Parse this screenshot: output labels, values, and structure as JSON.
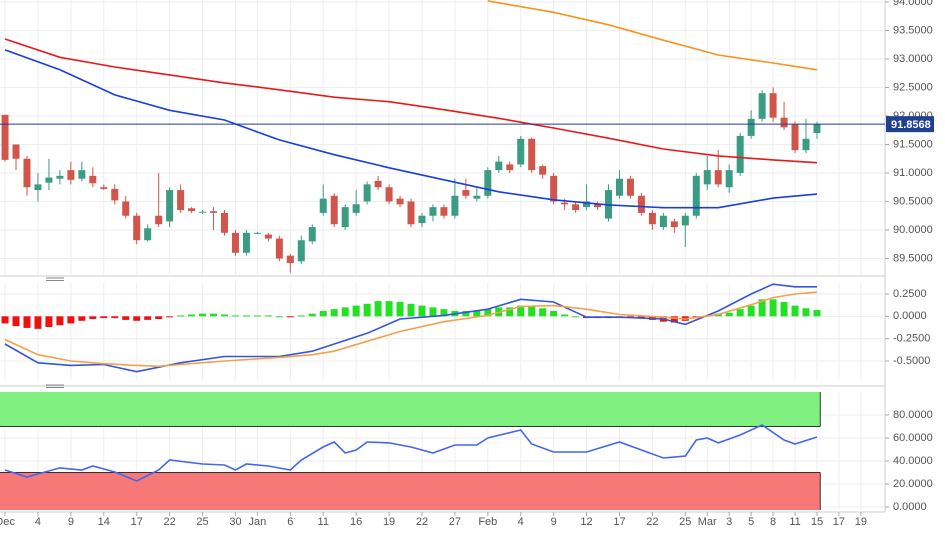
{
  "chart_data": [
    {
      "type": "candlestick",
      "up_color": "#3b9c84",
      "down_color": "#d0564c",
      "ylim": [
        89.21,
        94.035
      ],
      "yticks": [
        {
          "value": 94,
          "label": "94.0000"
        },
        {
          "value": 93.5,
          "label": "93.5000"
        },
        {
          "value": 93,
          "label": "93.0000"
        },
        {
          "value": 92.5,
          "label": "92.5000"
        },
        {
          "value": 92,
          "label": "92.0000"
        },
        {
          "value": 91.5,
          "label": "91.5000"
        },
        {
          "value": 91,
          "label": "91.0000"
        },
        {
          "value": 90.5,
          "label": "90.5000"
        },
        {
          "value": 90,
          "label": "90.0000"
        },
        {
          "value": 89.5,
          "label": "89.5000"
        }
      ],
      "grid": true,
      "candles": [
        [
          92.02,
          92.02,
          91.2,
          91.23
        ],
        [
          91.5,
          91.5,
          91.05,
          91.25
        ],
        [
          91.25,
          91.3,
          90.6,
          90.75
        ],
        [
          90.7,
          91.0,
          90.5,
          90.8
        ],
        [
          90.83,
          91.25,
          90.7,
          90.92
        ],
        [
          90.9,
          91.05,
          90.8,
          90.95
        ],
        [
          91.05,
          91.2,
          90.8,
          90.88
        ],
        [
          90.9,
          91.2,
          90.85,
          91.05
        ],
        [
          90.95,
          91.1,
          90.75,
          90.82
        ],
        [
          90.75,
          90.8,
          90.7,
          90.72
        ],
        [
          90.72,
          90.8,
          90.45,
          90.52
        ],
        [
          90.5,
          90.6,
          90.2,
          90.25
        ],
        [
          90.25,
          90.3,
          89.75,
          89.82
        ],
        [
          89.82,
          90.1,
          89.8,
          90.03
        ],
        [
          90.25,
          91.0,
          90.05,
          90.1
        ],
        [
          90.15,
          90.75,
          90.05,
          90.7
        ],
        [
          90.7,
          90.8,
          90.3,
          90.35
        ],
        [
          90.38,
          90.4,
          90.3,
          90.33
        ],
        [
          90.32,
          90.35,
          90.28,
          90.32
        ],
        [
          90.33,
          90.4,
          90.0,
          90.3
        ],
        [
          90.3,
          90.35,
          89.9,
          89.95
        ],
        [
          89.95,
          90.0,
          89.55,
          89.6
        ],
        [
          89.6,
          90.0,
          89.55,
          89.95
        ],
        [
          89.95,
          89.97,
          89.93,
          89.95
        ],
        [
          89.92,
          89.95,
          89.8,
          89.85
        ],
        [
          89.85,
          89.9,
          89.45,
          89.5
        ],
        [
          89.55,
          89.58,
          89.25,
          89.42
        ],
        [
          89.45,
          89.9,
          89.4,
          89.82
        ],
        [
          89.8,
          90.1,
          89.75,
          90.05
        ],
        [
          90.3,
          90.8,
          90.25,
          90.55
        ],
        [
          90.6,
          90.65,
          90.05,
          90.1
        ],
        [
          90.05,
          90.45,
          90.0,
          90.4
        ],
        [
          90.3,
          90.7,
          90.25,
          90.45
        ],
        [
          90.5,
          90.85,
          90.45,
          90.8
        ],
        [
          90.86,
          90.95,
          90.7,
          90.75
        ],
        [
          90.75,
          90.8,
          90.45,
          90.5
        ],
        [
          90.55,
          90.6,
          90.4,
          90.45
        ],
        [
          90.5,
          90.55,
          90.05,
          90.1
        ],
        [
          90.12,
          90.3,
          90.05,
          90.25
        ],
        [
          90.25,
          90.45,
          90.15,
          90.4
        ],
        [
          90.4,
          90.45,
          90.2,
          90.25
        ],
        [
          90.25,
          90.9,
          90.2,
          90.6
        ],
        [
          90.7,
          90.9,
          90.55,
          90.6
        ],
        [
          90.55,
          90.75,
          90.5,
          90.6
        ],
        [
          90.6,
          91.1,
          90.55,
          91.05
        ],
        [
          91.05,
          91.3,
          91.0,
          91.2
        ],
        [
          91.15,
          91.2,
          91.0,
          91.05
        ],
        [
          91.15,
          91.65,
          91.1,
          91.6
        ],
        [
          91.6,
          91.62,
          91.0,
          91.05
        ],
        [
          91.12,
          91.15,
          90.9,
          90.97
        ],
        [
          90.95,
          91.0,
          90.45,
          90.5
        ],
        [
          90.48,
          90.55,
          90.35,
          90.45
        ],
        [
          90.45,
          90.5,
          90.3,
          90.35
        ],
        [
          90.4,
          90.8,
          90.35,
          90.5
        ],
        [
          90.45,
          90.5,
          90.35,
          90.4
        ],
        [
          90.2,
          90.8,
          90.15,
          90.7
        ],
        [
          90.6,
          91.05,
          90.55,
          90.9
        ],
        [
          90.9,
          90.95,
          90.55,
          90.6
        ],
        [
          90.6,
          90.65,
          90.25,
          90.3
        ],
        [
          90.3,
          90.35,
          90.0,
          90.1
        ],
        [
          90.05,
          90.3,
          90.0,
          90.25
        ],
        [
          90.15,
          90.2,
          89.95,
          90.05
        ],
        [
          90.08,
          90.3,
          89.7,
          90.25
        ],
        [
          90.25,
          91.0,
          90.2,
          90.95
        ],
        [
          90.8,
          91.3,
          90.7,
          91.05
        ],
        [
          91.05,
          91.4,
          90.75,
          90.8
        ],
        [
          90.75,
          91.15,
          90.65,
          91.05
        ],
        [
          91.0,
          91.7,
          90.95,
          91.65
        ],
        [
          91.65,
          92.1,
          91.6,
          91.95
        ],
        [
          91.95,
          92.45,
          91.9,
          92.4
        ],
        [
          92.4,
          92.5,
          91.9,
          91.97
        ],
        [
          91.97,
          92.25,
          91.75,
          91.8
        ],
        [
          91.85,
          91.9,
          91.35,
          91.4
        ],
        [
          91.4,
          91.95,
          91.35,
          91.6
        ],
        [
          91.7,
          91.9,
          91.6,
          91.86
        ]
      ],
      "series": [
        {
          "color": "#f7931e",
          "x": [
            44,
            50,
            55,
            60,
            65,
            70,
            74
          ],
          "values": [
            94.02,
            93.82,
            93.6,
            93.33,
            93.07,
            92.93,
            92.81
          ]
        },
        {
          "color": "#e8191c",
          "x": [
            0,
            5,
            10,
            15,
            20,
            25,
            30,
            35,
            40,
            45,
            50,
            55,
            60,
            65,
            70,
            74
          ],
          "values": [
            93.35,
            93.03,
            92.86,
            92.72,
            92.58,
            92.46,
            92.33,
            92.25,
            92.11,
            91.96,
            91.79,
            91.61,
            91.42,
            91.3,
            91.23,
            91.18
          ]
        },
        {
          "color": "#1a3de0",
          "x": [
            0,
            5,
            10,
            15,
            20,
            25,
            30,
            35,
            40,
            45,
            50,
            55,
            60,
            65,
            70,
            74
          ],
          "values": [
            93.16,
            92.81,
            92.37,
            92.1,
            91.93,
            91.58,
            91.32,
            91.09,
            90.88,
            90.67,
            90.53,
            90.44,
            90.39,
            90.39,
            90.56,
            90.63
          ]
        }
      ],
      "last_price": 91.8568,
      "last_price_color": "#1f3f8f"
    },
    {
      "type": "macd",
      "positive_color": "#22e022",
      "negative_color": "#ee1111",
      "ylim": [
        -0.713,
        0.373
      ],
      "yticks": [
        {
          "value": 0.25,
          "label": "0.2500"
        },
        {
          "value": 0,
          "label": "0.0000"
        },
        {
          "value": -0.25,
          "label": "-0.2500"
        },
        {
          "value": -0.5,
          "label": "-0.5000"
        }
      ],
      "grid": true,
      "histogram": [
        -0.08,
        -0.11,
        -0.13,
        -0.14,
        -0.12,
        -0.1,
        -0.08,
        -0.05,
        -0.03,
        -0.02,
        -0.02,
        -0.04,
        -0.05,
        -0.04,
        -0.03,
        -0.01,
        0.01,
        0.02,
        0.03,
        0.03,
        0.02,
        0.01,
        0.01,
        0.01,
        0.01,
        0.0,
        -0.01,
        0.01,
        0.03,
        0.06,
        0.08,
        0.1,
        0.12,
        0.14,
        0.17,
        0.17,
        0.16,
        0.14,
        0.12,
        0.1,
        0.08,
        0.06,
        0.06,
        0.06,
        0.08,
        0.1,
        0.1,
        0.12,
        0.11,
        0.09,
        0.06,
        0.02,
        0.0,
        -0.02,
        -0.02,
        -0.02,
        -0.01,
        -0.01,
        -0.02,
        -0.04,
        -0.06,
        -0.07,
        -0.05,
        -0.02,
        0.01,
        0.03,
        0.04,
        0.08,
        0.12,
        0.19,
        0.19,
        0.16,
        0.12,
        0.09,
        0.07
      ],
      "series": [
        {
          "color": "#3355dd",
          "x": [
            0,
            3,
            6,
            9,
            12,
            14,
            16,
            20,
            25,
            28,
            30,
            33,
            36,
            40,
            44,
            47,
            50,
            53,
            56,
            60,
            62,
            65,
            68,
            70,
            72,
            74
          ],
          "values": [
            -0.31,
            -0.52,
            -0.55,
            -0.54,
            -0.62,
            -0.57,
            -0.52,
            -0.45,
            -0.45,
            -0.39,
            -0.31,
            -0.19,
            -0.03,
            0.01,
            0.08,
            0.19,
            0.16,
            -0.01,
            -0.01,
            -0.03,
            -0.09,
            0.06,
            0.25,
            0.36,
            0.33,
            0.33
          ]
        },
        {
          "color": "#f5a04a",
          "x": [
            0,
            3,
            6,
            9,
            12,
            14,
            16,
            20,
            25,
            28,
            30,
            33,
            36,
            40,
            44,
            47,
            50,
            53,
            56,
            60,
            62,
            65,
            68,
            70,
            72,
            74
          ],
          "values": [
            -0.26,
            -0.43,
            -0.5,
            -0.53,
            -0.55,
            -0.56,
            -0.54,
            -0.5,
            -0.46,
            -0.43,
            -0.39,
            -0.28,
            -0.17,
            -0.06,
            0.01,
            0.11,
            0.12,
            0.08,
            0.02,
            -0.01,
            -0.03,
            0.02,
            0.13,
            0.21,
            0.25,
            0.27
          ]
        }
      ]
    },
    {
      "type": "line",
      "ylim": [
        -2.6,
        100
      ],
      "yticks": [
        {
          "value": 80,
          "label": "80.0000"
        },
        {
          "value": 60,
          "label": "60.0000"
        },
        {
          "value": 40,
          "label": "40.0000"
        },
        {
          "value": 20,
          "label": "20.0000"
        },
        {
          "value": 0,
          "label": "0.0000"
        }
      ],
      "grid": true,
      "overbought": 70,
      "overbought_color": "#80f080",
      "oversold": 30,
      "oversold_color": "#f87878",
      "series": [
        {
          "color": "#4466ee",
          "x": [
            0,
            2,
            5,
            7,
            8,
            10,
            12,
            14,
            15,
            18,
            20,
            21,
            22,
            24,
            26,
            27,
            29,
            30,
            31,
            32,
            33,
            35,
            37,
            39,
            41,
            43,
            44,
            47,
            48,
            50,
            53,
            56,
            58,
            60,
            62,
            63,
            64,
            65,
            67,
            69,
            71,
            72,
            74
          ],
          "values": [
            32.2,
            26.1,
            34.0,
            32.2,
            35.7,
            30.4,
            22.6,
            32.2,
            40.9,
            37.4,
            36.5,
            32.2,
            37.4,
            35.7,
            32.2,
            40.9,
            52.2,
            56.5,
            47.0,
            49.6,
            56.5,
            55.7,
            52.2,
            47.0,
            53.9,
            53.9,
            60.0,
            67.0,
            54.8,
            47.8,
            47.8,
            56.5,
            49.6,
            42.6,
            44.3,
            58.3,
            60.0,
            55.7,
            62.6,
            71.3,
            58.3,
            54.8,
            60.9
          ]
        }
      ],
      "xlim": [
        -0.46,
        80.2
      ],
      "xticks": [
        {
          "value": 0,
          "label": "Dec"
        },
        {
          "value": 3,
          "label": "4"
        },
        {
          "value": 6,
          "label": "9"
        },
        {
          "value": 9,
          "label": "14"
        },
        {
          "value": 12,
          "label": "17"
        },
        {
          "value": 15,
          "label": "22"
        },
        {
          "value": 18,
          "label": "25"
        },
        {
          "value": 21,
          "label": "30"
        },
        {
          "value": 23,
          "label": "Jan"
        },
        {
          "value": 26,
          "label": "6"
        },
        {
          "value": 29,
          "label": "11"
        },
        {
          "value": 32,
          "label": "16"
        },
        {
          "value": 35,
          "label": "19"
        },
        {
          "value": 38,
          "label": "22"
        },
        {
          "value": 41,
          "label": "27"
        },
        {
          "value": 44,
          "label": "Feb"
        },
        {
          "value": 47,
          "label": "4"
        },
        {
          "value": 50,
          "label": "9"
        },
        {
          "value": 53,
          "label": "12"
        },
        {
          "value": 56,
          "label": "17"
        },
        {
          "value": 59,
          "label": "22"
        },
        {
          "value": 62,
          "label": "25"
        },
        {
          "value": 64,
          "label": "Mar"
        },
        {
          "value": 66,
          "label": "3"
        },
        {
          "value": 68,
          "label": "5"
        },
        {
          "value": 70,
          "label": "8"
        },
        {
          "value": 72,
          "label": "11"
        },
        {
          "value": 74,
          "label": "15"
        },
        {
          "value": 76,
          "label": "17"
        },
        {
          "value": 78,
          "label": "19"
        }
      ]
    }
  ]
}
